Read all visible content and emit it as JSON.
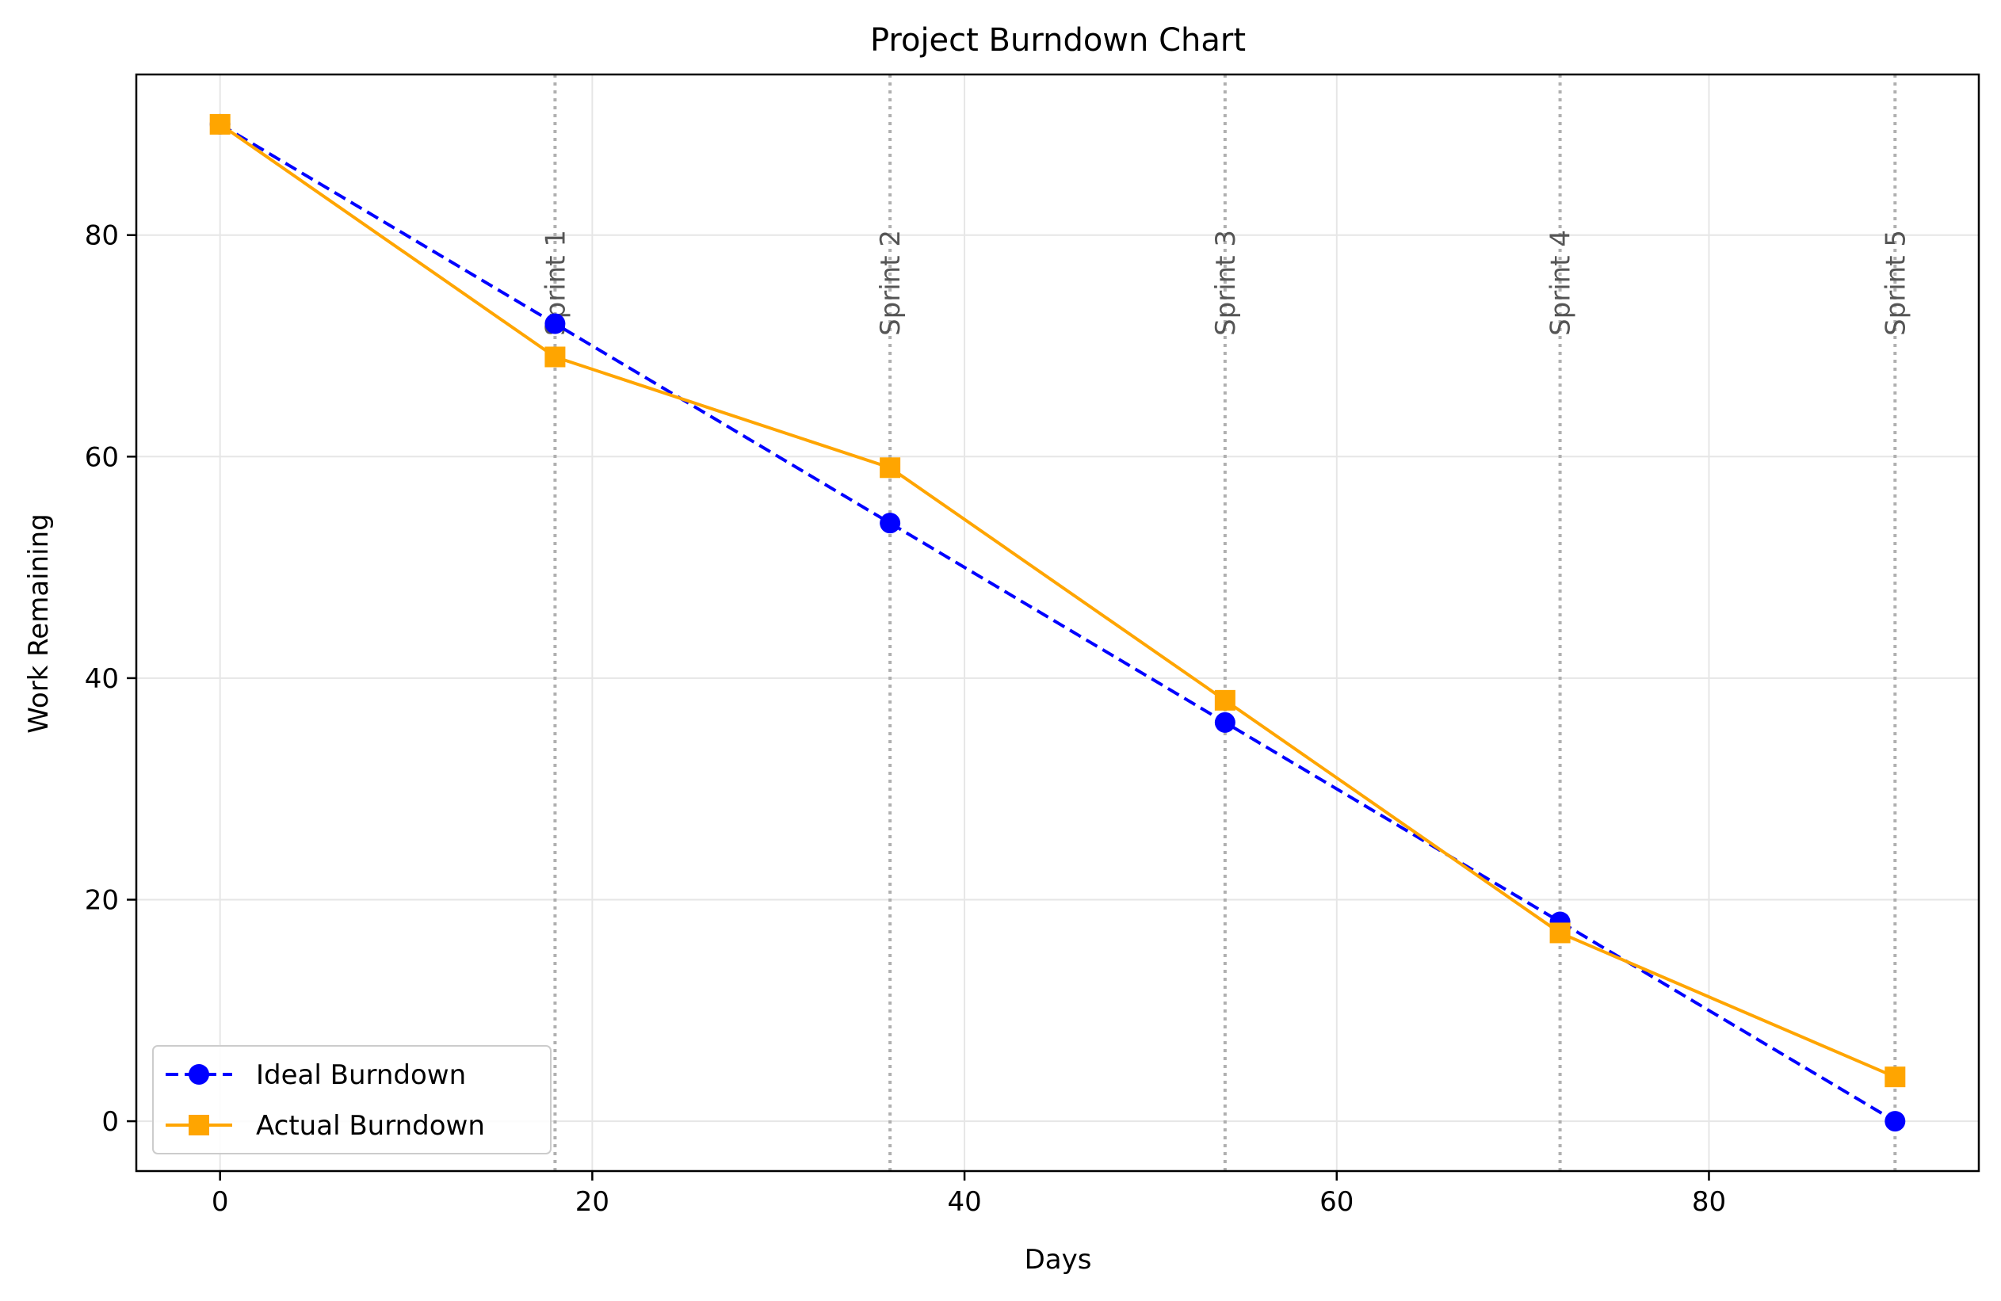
{
  "chart_data": {
    "type": "line",
    "title": "Project Burndown Chart",
    "xlabel": "Days",
    "ylabel": "Work Remaining",
    "xlim": [
      -4.5,
      94.5
    ],
    "ylim": [
      -4.5,
      94.5
    ],
    "xticks": [
      0,
      20,
      40,
      60,
      80
    ],
    "yticks": [
      0,
      20,
      40,
      60,
      80
    ],
    "grid": true,
    "legend_position": "lower-left",
    "series": [
      {
        "name": "Ideal Burndown",
        "x": [
          0,
          18,
          36,
          54,
          72,
          90
        ],
        "y": [
          90,
          72,
          54,
          36,
          18,
          0
        ],
        "color": "#0000ff",
        "line_style": "dashed",
        "marker": "circle"
      },
      {
        "name": "Actual Burndown",
        "x": [
          0,
          18,
          36,
          54,
          72,
          90
        ],
        "y": [
          90,
          69,
          59,
          38,
          17,
          4
        ],
        "color": "#ffa500",
        "line_style": "solid",
        "marker": "square"
      }
    ],
    "annotations": [
      {
        "label": "Sprint 1",
        "x": 18
      },
      {
        "label": "Sprint 2",
        "x": 36
      },
      {
        "label": "Sprint 3",
        "x": 54
      },
      {
        "label": "Sprint 4",
        "x": 72
      },
      {
        "label": "Sprint 5",
        "x": 90
      }
    ],
    "sprint_line_color": "#b0b0b0",
    "sprint_label_color": "#555555",
    "grid_color": "#e6e6e6"
  }
}
